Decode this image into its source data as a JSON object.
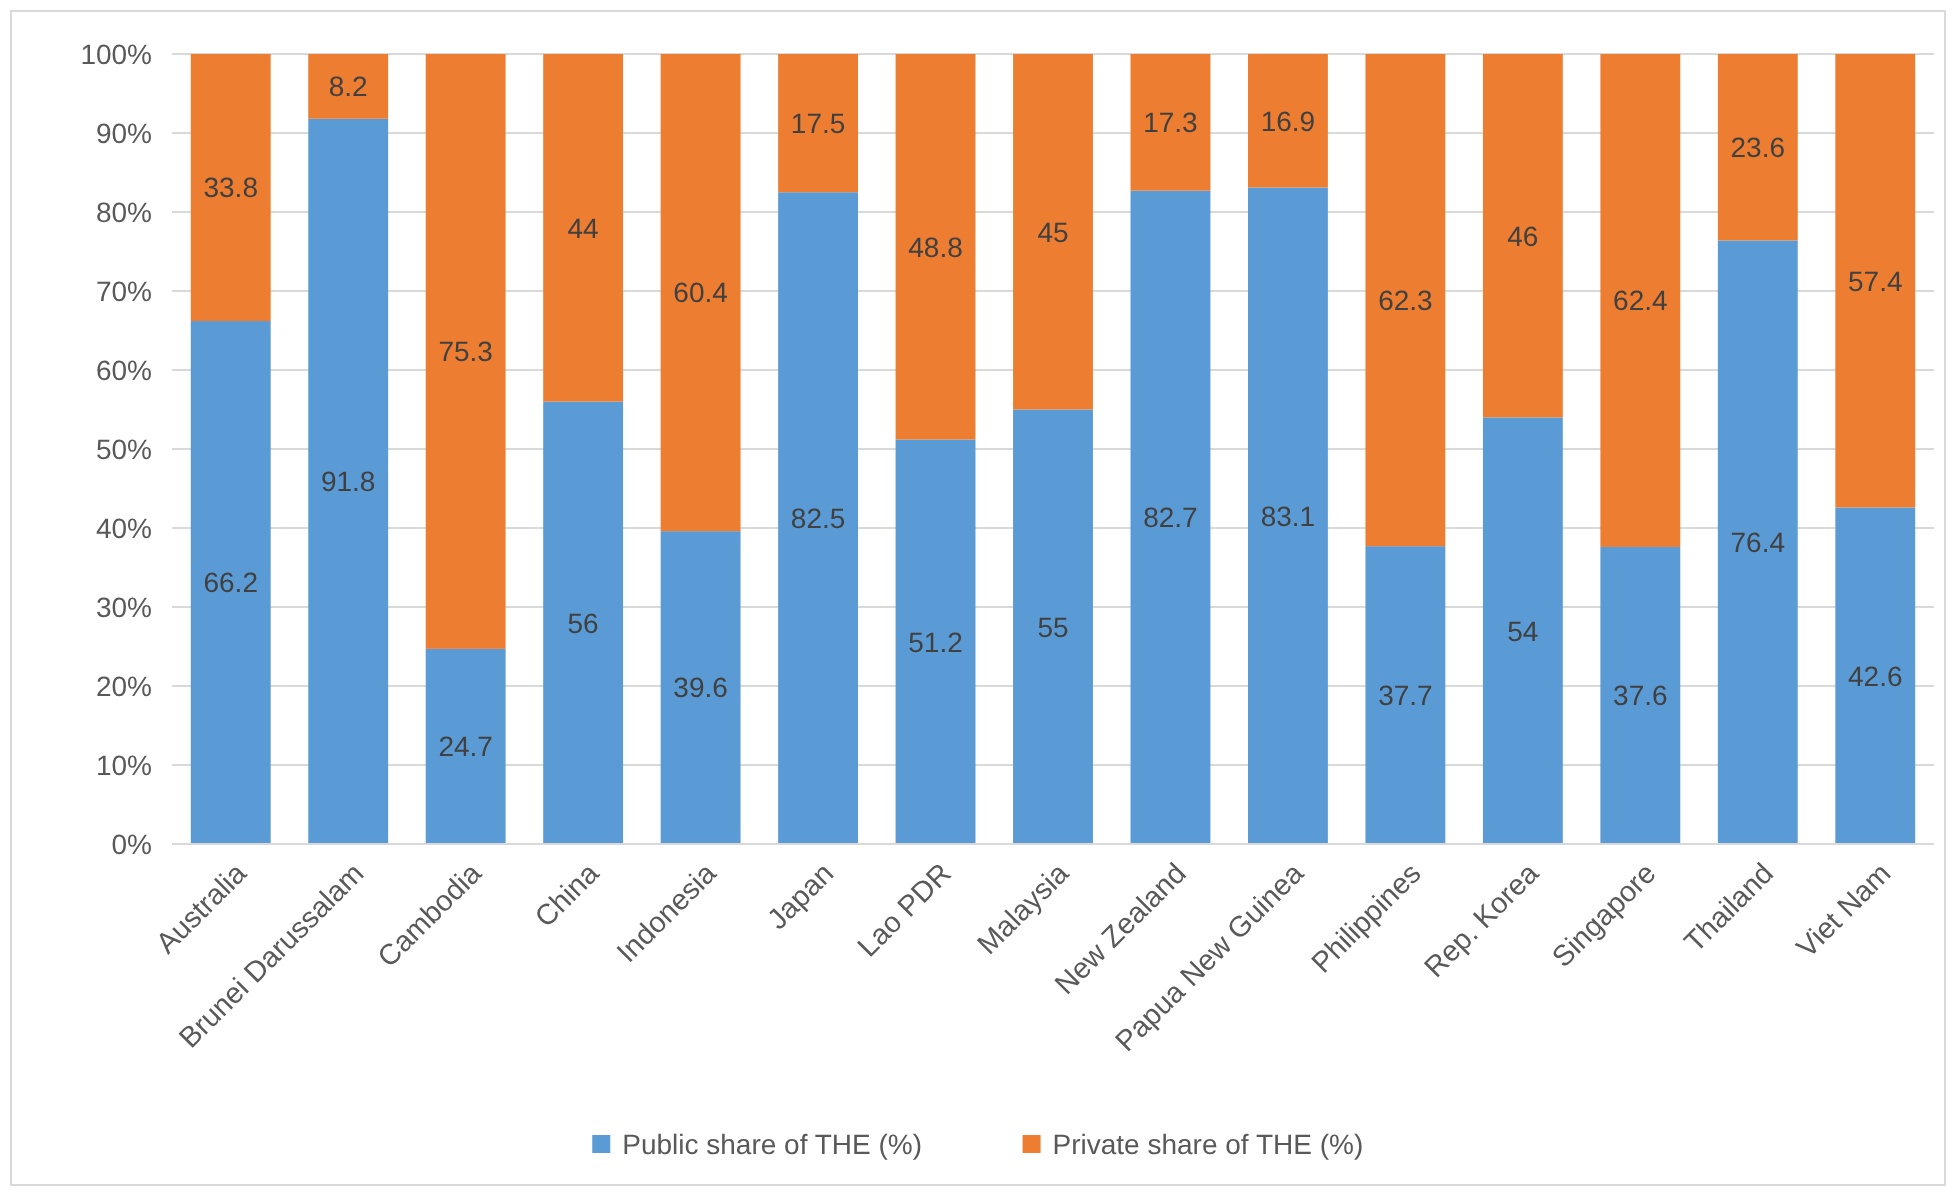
{
  "chart_data": {
    "type": "bar",
    "stacked": true,
    "categories": [
      "Australia",
      "Brunei Darussalam",
      "Cambodia",
      "China",
      "Indonesia",
      "Japan",
      "Lao PDR",
      "Malaysia",
      "New Zealand",
      "Papua New Guinea",
      "Philippines",
      "Rep. Korea",
      "Singapore",
      "Thailand",
      "Viet Nam"
    ],
    "series": [
      {
        "name": "Public share of THE (%)",
        "color": "#5b9bd5",
        "values": [
          66.2,
          91.8,
          24.7,
          56,
          39.6,
          82.5,
          51.2,
          55,
          82.7,
          83.1,
          37.7,
          54,
          37.6,
          76.4,
          42.6
        ]
      },
      {
        "name": "Private share of THE (%)",
        "color": "#ed7d31",
        "values": [
          33.8,
          8.2,
          75.3,
          44,
          60.4,
          17.5,
          48.8,
          45,
          17.3,
          16.9,
          62.3,
          46,
          62.4,
          23.6,
          57.4
        ]
      }
    ],
    "ylim": [
      0,
      100
    ],
    "yticks": [
      {
        "value": 0,
        "label": "0%"
      },
      {
        "value": 10,
        "label": "10%"
      },
      {
        "value": 20,
        "label": "20%"
      },
      {
        "value": 30,
        "label": "30%"
      },
      {
        "value": 40,
        "label": "40%"
      },
      {
        "value": 50,
        "label": "50%"
      },
      {
        "value": 60,
        "label": "60%"
      },
      {
        "value": 70,
        "label": "70%"
      },
      {
        "value": 80,
        "label": "80%"
      },
      {
        "value": 90,
        "label": "90%"
      },
      {
        "value": 100,
        "label": "100%"
      }
    ],
    "grid": "y",
    "legend": "bottom",
    "data_labels": true
  }
}
